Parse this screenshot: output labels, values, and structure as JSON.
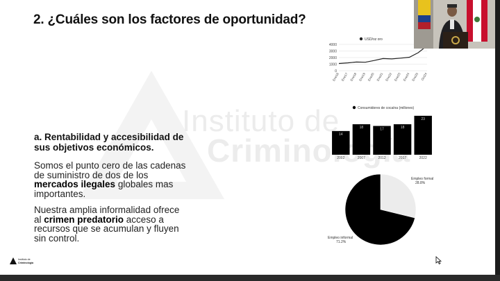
{
  "slide": {
    "title": "2. ¿Cuáles son los factores de oportunidad?",
    "subtitle_line1": "a. Rentabilidad y accesibilidad de",
    "subtitle_line2": "sus objetivos económicos.",
    "para1": {
      "line1": "Somos el punto cero de las cadenas",
      "line2": "de suministro de dos de los",
      "bold": "mercados ilegales",
      "after_bold": " globales mas",
      "line4": "importantes."
    },
    "para2": {
      "line1": "Nuestra amplia informalidad ofrece",
      "before_bold": "al ",
      "bold": "crimen predatorio",
      "after_bold": " acceso a",
      "line3": "recursos que se acumulan y fluyen",
      "line4": "sin control."
    },
    "watermark": {
      "line1": "Instituto de",
      "line2": "Criminología"
    },
    "logo": {
      "line1": "Instituto de",
      "line2": "Criminología"
    }
  },
  "chart_data": [
    {
      "type": "line",
      "legend": "USD/oz oro",
      "x": [
        "Ene16",
        "Ene17",
        "Ene18",
        "Ene19",
        "Ene20",
        "Ene21",
        "Ene22",
        "Ene23",
        "Ene24",
        "Ene25",
        "Oct24"
      ],
      "series": [
        {
          "name": "USD/oz oro",
          "values": [
            1100,
            1200,
            1330,
            1290,
            1560,
            1850,
            1800,
            1920,
            2050,
            2750,
            3800
          ]
        }
      ],
      "yticks": [
        0,
        1000,
        2000,
        3000,
        4000
      ],
      "ylim": [
        0,
        4000
      ],
      "color": "#222222"
    },
    {
      "type": "bar",
      "legend": "Consumidores de cocaína (millones)",
      "categories": [
        "2002",
        "2007",
        "2012",
        "2017",
        "2022"
      ],
      "values": [
        14,
        18,
        17,
        18,
        23
      ],
      "ylim": [
        0,
        25
      ],
      "color": "#000000"
    },
    {
      "type": "pie",
      "slices": [
        {
          "label": "Empleo formal",
          "value_label": "28.8%",
          "value": 28.8,
          "color": "#ececec"
        },
        {
          "label": "Empleo informal",
          "value_label": "71.2%",
          "value": 71.2,
          "color": "#000000"
        }
      ]
    }
  ]
}
